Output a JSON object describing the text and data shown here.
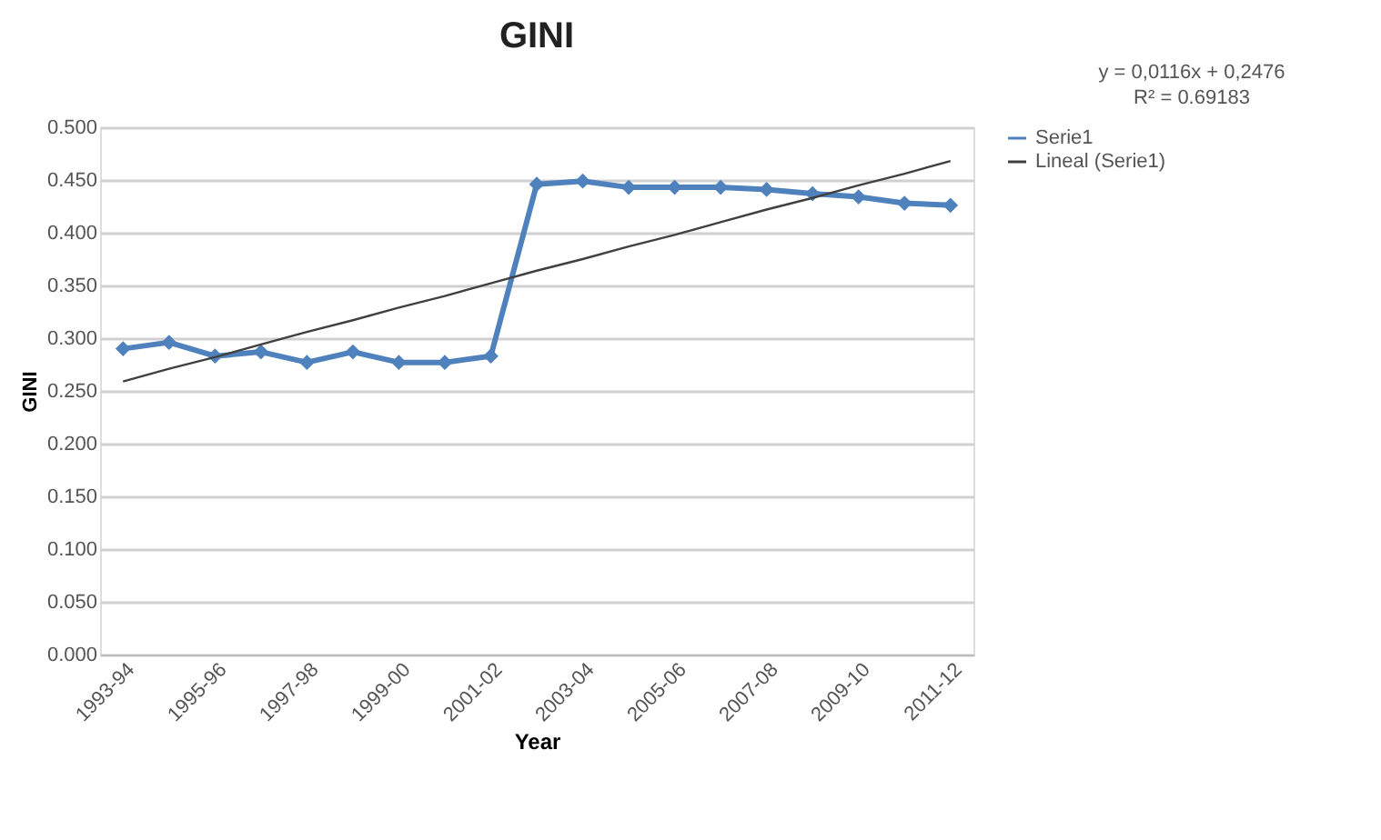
{
  "chart_data": {
    "type": "line",
    "title": "GINI",
    "xlabel": "Year",
    "ylabel": "GINI",
    "categories": [
      "1993-94",
      null,
      "1995-96",
      null,
      "1997-98",
      null,
      "1999-00",
      null,
      "2001-02",
      null,
      "2003-04",
      null,
      "2005-06",
      null,
      "2007-08",
      null,
      "2009-10",
      null,
      "2011-12"
    ],
    "series": [
      {
        "name": "Serie1",
        "color": "#4f81bd",
        "marker": "diamond",
        "values": [
          0.29,
          0.296,
          0.283,
          0.287,
          0.277,
          0.287,
          0.277,
          0.277,
          0.283,
          0.446,
          0.449,
          0.443,
          0.443,
          0.443,
          0.441,
          0.437,
          0.434,
          0.428,
          0.426
        ]
      },
      {
        "name": "Lineal (Serie1)",
        "color": "#404040",
        "marker": "none",
        "values": [
          0.259,
          0.271,
          0.282,
          0.294,
          0.306,
          0.317,
          0.329,
          0.34,
          0.352,
          0.364,
          0.375,
          0.387,
          0.398,
          0.41,
          0.422,
          0.433,
          0.445,
          0.456,
          0.468
        ]
      }
    ],
    "ylim": [
      0,
      0.5
    ],
    "yticks": [
      {
        "value": 0,
        "label": "0.000"
      },
      {
        "value": 0.05,
        "label": "0.050"
      },
      {
        "value": 0.1,
        "label": "0.100"
      },
      {
        "value": 0.15,
        "label": "0.150"
      },
      {
        "value": 0.2,
        "label": "0.200"
      },
      {
        "value": 0.25,
        "label": "0.250"
      },
      {
        "value": 0.3,
        "label": "0.300"
      },
      {
        "value": 0.35,
        "label": "0.350"
      },
      {
        "value": 0.4,
        "label": "0.400"
      },
      {
        "value": 0.45,
        "label": "0.450"
      },
      {
        "value": 0.5,
        "label": "0.500"
      }
    ],
    "grid": "y",
    "legend": "right",
    "annotations": [
      "y = 0,0116x + 0,2476",
      "R² = 0.69183"
    ]
  }
}
